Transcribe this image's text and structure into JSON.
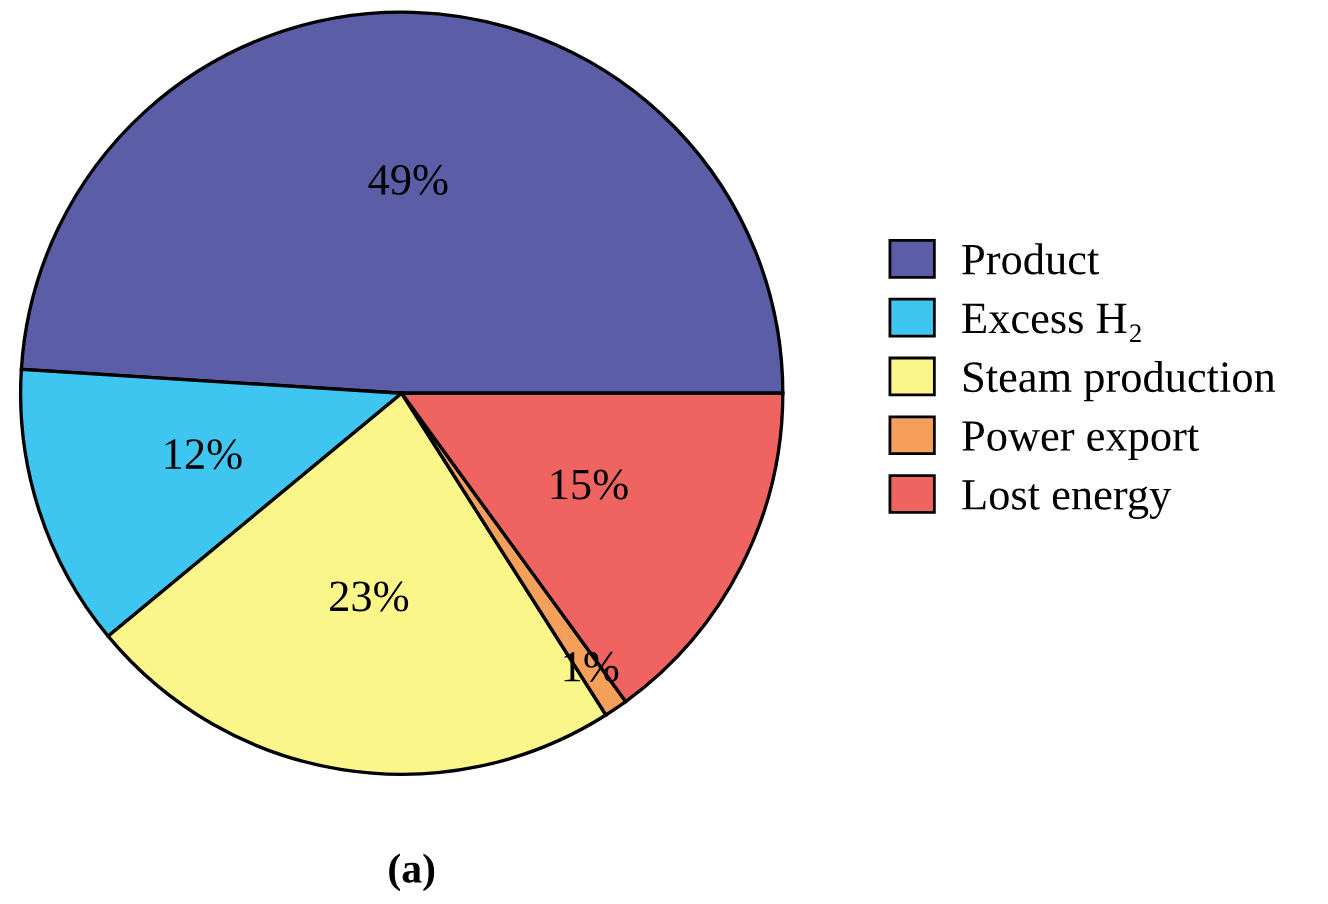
{
  "chart_data": {
    "type": "pie",
    "title": "(a)",
    "categories": [
      "Product",
      "Excess H₂",
      "Steam production",
      "Power export",
      "Lost energy"
    ],
    "values": [
      49,
      12,
      23,
      1,
      15
    ],
    "colors": [
      "#5b5ea6",
      "#3fc6f0",
      "#fbf68a",
      "#f5a05a",
      "#ef6461"
    ],
    "value_labels": [
      "49%",
      "12%",
      "23%",
      "1%",
      "15%"
    ],
    "legend": "right"
  }
}
